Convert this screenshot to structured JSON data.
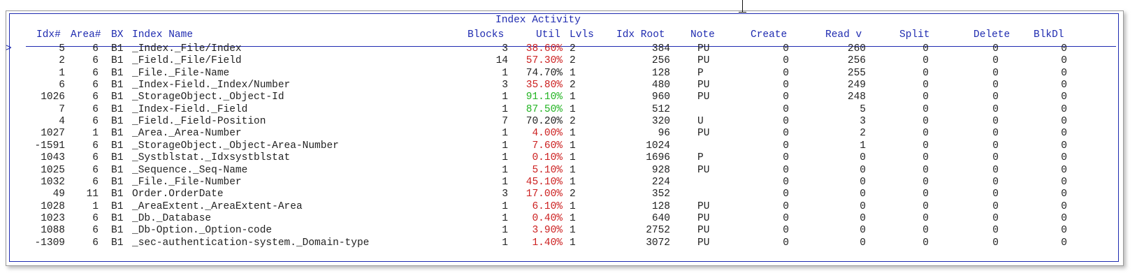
{
  "panel_title": "Index Activity",
  "headers": {
    "idx": "Idx#",
    "area": "Area#",
    "bx": "BX",
    "name": "Index Name",
    "blocks": "Blocks",
    "util": "Util",
    "lvls": "Lvls",
    "root": "Idx Root",
    "note": "Note",
    "create": "Create",
    "read": "Read v",
    "split": "Split",
    "delete": "Delete",
    "blkdl": "BlkDl"
  },
  "selection_marker": ">",
  "rows": [
    {
      "idx": "5",
      "area": "6",
      "bx": "B1",
      "name": "_Index._File/Index",
      "blocks": "3",
      "util": "38.60%",
      "util_level": "bad",
      "lvls": "2",
      "root": "384",
      "note": "PU",
      "create": "0",
      "read": "260",
      "split": "0",
      "delete": "0",
      "blkdl": "0",
      "selected": true
    },
    {
      "idx": "2",
      "area": "6",
      "bx": "B1",
      "name": "_Field._File/Field",
      "blocks": "14",
      "util": "57.30%",
      "util_level": "bad",
      "lvls": "2",
      "root": "256",
      "note": "PU",
      "create": "0",
      "read": "256",
      "split": "0",
      "delete": "0",
      "blkdl": "0"
    },
    {
      "idx": "1",
      "area": "6",
      "bx": "B1",
      "name": "_File._File-Name",
      "blocks": "1",
      "util": "74.70%",
      "util_level": "normal",
      "lvls": "1",
      "root": "128",
      "note": "P",
      "create": "0",
      "read": "255",
      "split": "0",
      "delete": "0",
      "blkdl": "0"
    },
    {
      "idx": "6",
      "area": "6",
      "bx": "B1",
      "name": "_Index-Field._Index/Number",
      "blocks": "3",
      "util": "35.80%",
      "util_level": "bad",
      "lvls": "2",
      "root": "480",
      "note": "PU",
      "create": "0",
      "read": "249",
      "split": "0",
      "delete": "0",
      "blkdl": "0"
    },
    {
      "idx": "1026",
      "area": "6",
      "bx": "B1",
      "name": "_StorageObject._Object-Id",
      "blocks": "1",
      "util": "91.10%",
      "util_level": "good",
      "lvls": "1",
      "root": "960",
      "note": "PU",
      "create": "0",
      "read": "248",
      "split": "0",
      "delete": "0",
      "blkdl": "0"
    },
    {
      "idx": "7",
      "area": "6",
      "bx": "B1",
      "name": "_Index-Field._Field",
      "blocks": "1",
      "util": "87.50%",
      "util_level": "good",
      "lvls": "1",
      "root": "512",
      "note": "",
      "create": "0",
      "read": "5",
      "split": "0",
      "delete": "0",
      "blkdl": "0"
    },
    {
      "idx": "4",
      "area": "6",
      "bx": "B1",
      "name": "_Field._Field-Position",
      "blocks": "7",
      "util": "70.20%",
      "util_level": "normal",
      "lvls": "2",
      "root": "320",
      "note": "U",
      "create": "0",
      "read": "3",
      "split": "0",
      "delete": "0",
      "blkdl": "0"
    },
    {
      "idx": "1027",
      "area": "1",
      "bx": "B1",
      "name": "_Area._Area-Number",
      "blocks": "1",
      "util": "4.00%",
      "util_level": "bad",
      "lvls": "1",
      "root": "96",
      "note": "PU",
      "create": "0",
      "read": "2",
      "split": "0",
      "delete": "0",
      "blkdl": "0"
    },
    {
      "idx": "-1591",
      "area": "6",
      "bx": "B1",
      "name": "_StorageObject._Object-Area-Number",
      "blocks": "1",
      "util": "7.60%",
      "util_level": "bad",
      "lvls": "1",
      "root": "1024",
      "note": "",
      "create": "0",
      "read": "1",
      "split": "0",
      "delete": "0",
      "blkdl": "0"
    },
    {
      "idx": "1043",
      "area": "6",
      "bx": "B1",
      "name": "_Systblstat._Idxsystblstat",
      "blocks": "1",
      "util": "0.10%",
      "util_level": "bad",
      "lvls": "1",
      "root": "1696",
      "note": "P",
      "create": "0",
      "read": "0",
      "split": "0",
      "delete": "0",
      "blkdl": "0"
    },
    {
      "idx": "1025",
      "area": "6",
      "bx": "B1",
      "name": "_Sequence._Seq-Name",
      "blocks": "1",
      "util": "5.10%",
      "util_level": "bad",
      "lvls": "1",
      "root": "928",
      "note": "PU",
      "create": "0",
      "read": "0",
      "split": "0",
      "delete": "0",
      "blkdl": "0"
    },
    {
      "idx": "1032",
      "area": "6",
      "bx": "B1",
      "name": "_File._File-Number",
      "blocks": "1",
      "util": "45.10%",
      "util_level": "bad",
      "lvls": "1",
      "root": "224",
      "note": "",
      "create": "0",
      "read": "0",
      "split": "0",
      "delete": "0",
      "blkdl": "0"
    },
    {
      "idx": "49",
      "area": "11",
      "bx": "B1",
      "name": "Order.OrderDate",
      "blocks": "3",
      "util": "17.00%",
      "util_level": "bad",
      "lvls": "2",
      "root": "352",
      "note": "",
      "create": "0",
      "read": "0",
      "split": "0",
      "delete": "0",
      "blkdl": "0"
    },
    {
      "idx": "1028",
      "area": "1",
      "bx": "B1",
      "name": "_AreaExtent._AreaExtent-Area",
      "blocks": "1",
      "util": "6.10%",
      "util_level": "bad",
      "lvls": "1",
      "root": "128",
      "note": "PU",
      "create": "0",
      "read": "0",
      "split": "0",
      "delete": "0",
      "blkdl": "0"
    },
    {
      "idx": "1023",
      "area": "6",
      "bx": "B1",
      "name": "_Db._Database",
      "blocks": "1",
      "util": "0.40%",
      "util_level": "bad",
      "lvls": "1",
      "root": "640",
      "note": "PU",
      "create": "0",
      "read": "0",
      "split": "0",
      "delete": "0",
      "blkdl": "0"
    },
    {
      "idx": "1088",
      "area": "6",
      "bx": "B1",
      "name": "_Db-Option._Option-code",
      "blocks": "1",
      "util": "3.90%",
      "util_level": "bad",
      "lvls": "1",
      "root": "2752",
      "note": "PU",
      "create": "0",
      "read": "0",
      "split": "0",
      "delete": "0",
      "blkdl": "0"
    },
    {
      "idx": "-1309",
      "area": "6",
      "bx": "B1",
      "name": "_sec-authentication-system._Domain-type",
      "blocks": "1",
      "util": "1.40%",
      "util_level": "bad",
      "lvls": "1",
      "root": "3072",
      "note": "PU",
      "create": "0",
      "read": "0",
      "split": "0",
      "delete": "0",
      "blkdl": "0"
    }
  ],
  "colors": {
    "frame": "#1f2bb0",
    "util_bad": "#cc1f1f",
    "util_good": "#22b422",
    "util_normal": "#222222"
  }
}
